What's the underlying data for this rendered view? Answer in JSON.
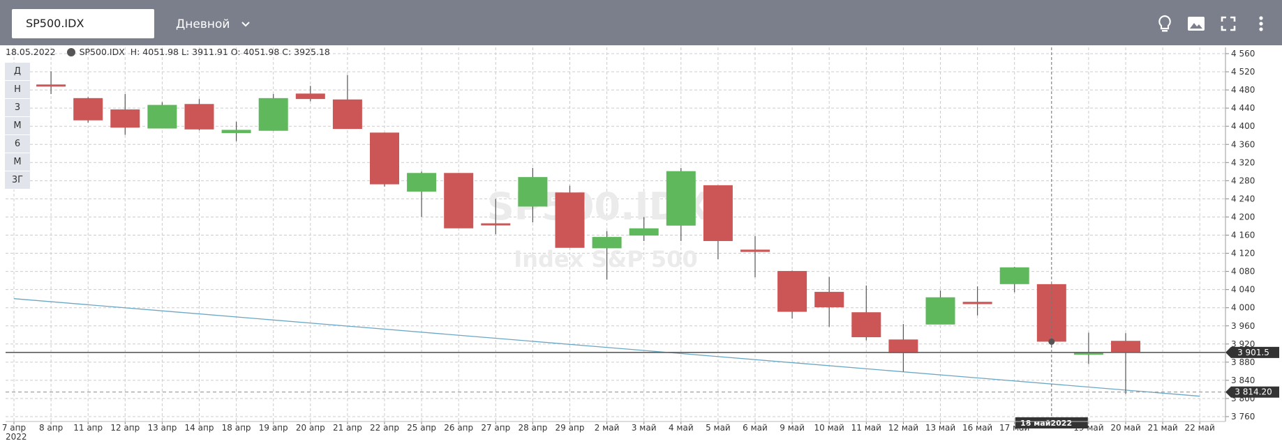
{
  "toolbar": {
    "symbol": "SP500.IDX",
    "period_label": "Дневной",
    "icons": [
      "lightbulb-icon",
      "image-icon",
      "fullscreen-icon",
      "more-vertical-icon"
    ]
  },
  "info": {
    "date": "18.05.2022",
    "symbol": "SP500.IDX",
    "ohlc": "H: 4051.98 L: 3911.91 O: 4051.98 C: 3925.18"
  },
  "period_buttons": [
    "Д",
    "Н",
    "3",
    "М",
    "6",
    "М",
    "3Г"
  ],
  "watermark": {
    "symbol": "SP500.IDX",
    "name": "Index S&P 500"
  },
  "chart_data": {
    "type": "candlestick",
    "y_ticks": [
      3760,
      3800,
      3840,
      3880,
      3920,
      3960,
      4000,
      4040,
      4080,
      4120,
      4160,
      4200,
      4240,
      4280,
      4320,
      4360,
      4400,
      4440,
      4480,
      4520,
      4560
    ],
    "y_tick_labels": [
      "3 760",
      "3 800",
      "3 840",
      "3 880",
      "3 920",
      "3 960",
      "4 000",
      "4 040",
      "4 080",
      "4 120",
      "4 160",
      "4 200",
      "4 240",
      "4 280",
      "4 320",
      "4 360",
      "4 400",
      "4 440",
      "4 480",
      "4 520",
      "4 560"
    ],
    "ylim": [
      3740,
      4580
    ],
    "x_labels": [
      "7 апр",
      "8 апр",
      "11 апр",
      "12 апр",
      "13 апр",
      "14 апр",
      "18 апр",
      "19 апр",
      "20 апр",
      "21 апр",
      "22 апр",
      "25 апр",
      "26 апр",
      "27 апр",
      "28 апр",
      "29 апр",
      "2 май",
      "3 май",
      "4 май",
      "5 май",
      "6 май",
      "9 май",
      "10 май",
      "11 май",
      "12 май",
      "13 май",
      "16 май",
      "17 май",
      "18 май",
      "19 май",
      "20 май",
      "21 май",
      "22 май"
    ],
    "x_year_label": "2022",
    "candles": [
      {
        "date": "8 апр",
        "o": 4492,
        "h": 4521,
        "l": 4471,
        "c": 4488
      },
      {
        "date": "11 апр",
        "o": 4462,
        "h": 4464,
        "l": 4408,
        "c": 4413
      },
      {
        "date": "12 апр",
        "o": 4437,
        "h": 4471,
        "l": 4381,
        "c": 4397
      },
      {
        "date": "13 апр",
        "o": 4395,
        "h": 4453,
        "l": 4395,
        "c": 4447
      },
      {
        "date": "14 апр",
        "o": 4449,
        "h": 4460,
        "l": 4391,
        "c": 4393
      },
      {
        "date": "18 апр",
        "o": 4385,
        "h": 4410,
        "l": 4367,
        "c": 4392
      },
      {
        "date": "19 апр",
        "o": 4390,
        "h": 4471,
        "l": 4390,
        "c": 4462
      },
      {
        "date": "20 апр",
        "o": 4472,
        "h": 4489,
        "l": 4455,
        "c": 4460
      },
      {
        "date": "21 апр",
        "o": 4459,
        "h": 4513,
        "l": 4395,
        "c": 4394
      },
      {
        "date": "22 апр",
        "o": 4386,
        "h": 4386,
        "l": 4267,
        "c": 4272
      },
      {
        "date": "25 апр",
        "o": 4256,
        "h": 4300,
        "l": 4200,
        "c": 4297
      },
      {
        "date": "26 апр",
        "o": 4297,
        "h": 4297,
        "l": 4176,
        "c": 4175
      },
      {
        "date": "27 апр",
        "o": 4186,
        "h": 4240,
        "l": 4162,
        "c": 4184
      },
      {
        "date": "28 апр",
        "o": 4223,
        "h": 4308,
        "l": 4188,
        "c": 4288
      },
      {
        "date": "29 апр",
        "o": 4254,
        "h": 4269,
        "l": 4133,
        "c": 4132
      },
      {
        "date": "2 май",
        "o": 4131,
        "h": 4169,
        "l": 4062,
        "c": 4156
      },
      {
        "date": "3 май",
        "o": 4159,
        "h": 4200,
        "l": 4147,
        "c": 4175
      },
      {
        "date": "4 май",
        "o": 4181,
        "h": 4308,
        "l": 4147,
        "c": 4301
      },
      {
        "date": "5 май",
        "o": 4270,
        "h": 4270,
        "l": 4107,
        "c": 4147
      },
      {
        "date": "6 май",
        "o": 4128,
        "h": 4158,
        "l": 4067,
        "c": 4123
      },
      {
        "date": "9 май",
        "o": 4081,
        "h": 4082,
        "l": 3976,
        "c": 3991
      },
      {
        "date": "10 май",
        "o": 4035,
        "h": 4068,
        "l": 3958,
        "c": 4001
      },
      {
        "date": "11 май",
        "o": 3990,
        "h": 4049,
        "l": 3928,
        "c": 3935
      },
      {
        "date": "12 май",
        "o": 3930,
        "h": 3964,
        "l": 3859,
        "c": 3900
      },
      {
        "date": "13 май",
        "o": 3963,
        "h": 4038,
        "l": 3963,
        "c": 4023
      },
      {
        "date": "16 май",
        "o": 4013,
        "h": 4047,
        "l": 3983,
        "c": 4008
      },
      {
        "date": "17 май",
        "o": 4052,
        "h": 4090,
        "l": 4034,
        "c": 4089
      },
      {
        "date": "18 май",
        "o": 4051.98,
        "h": 4051.98,
        "l": 3911.91,
        "c": 3925.18
      },
      {
        "date": "19 май",
        "o": 3900,
        "h": 3945,
        "l": 3876,
        "c": 3901
      },
      {
        "date": "20 май",
        "o": 3927,
        "h": 3944,
        "l": 3810,
        "c": 3901.5
      }
    ],
    "price_line": 3901.5,
    "price_line_label": "3 901.5",
    "support_line_label": "3 814.20",
    "support_level": 3814.2,
    "trendline": {
      "from": {
        "date": "7 апр",
        "value": 4020
      },
      "to": {
        "date": "22 май",
        "value": 3805
      }
    },
    "crosshair": {
      "date": "18 май",
      "value": 3925.18,
      "label_day": "18 май",
      "label_year": "2022"
    },
    "colors": {
      "up": "#5fb85b",
      "down": "#cc5555",
      "wick": "#555555",
      "trend": "#6aa7c4",
      "grid": "#cccccc"
    }
  }
}
